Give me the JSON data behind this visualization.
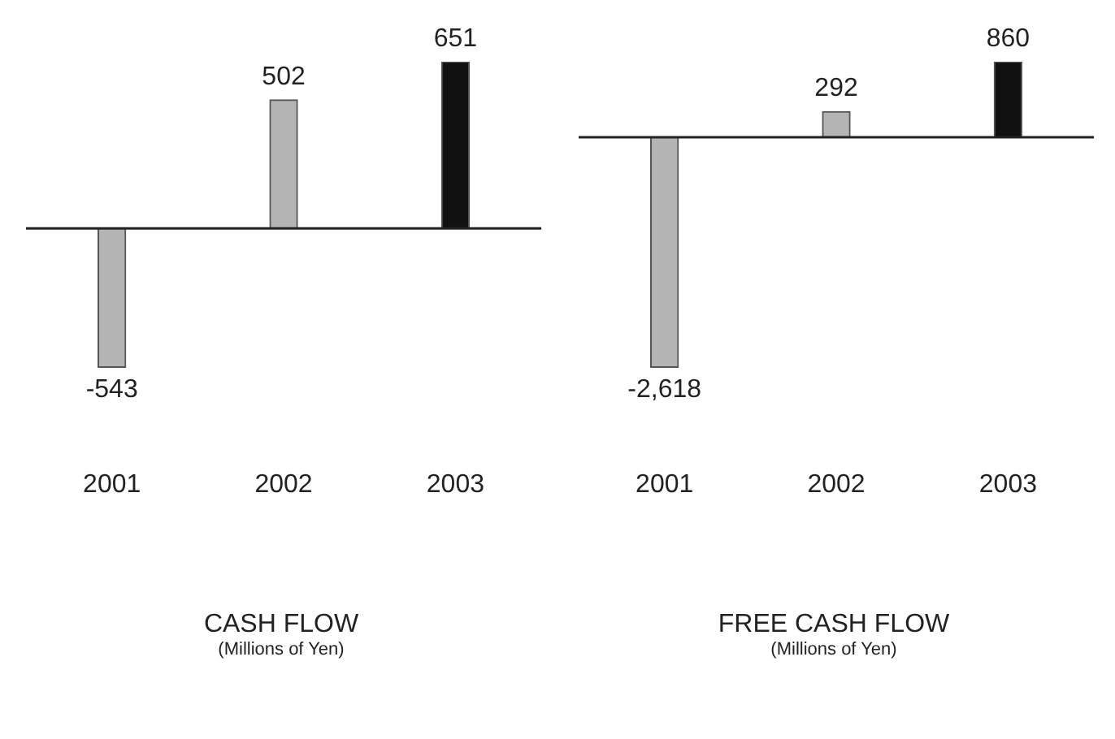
{
  "chart_data": [
    {
      "type": "bar",
      "title": "CASH FLOW",
      "subtitle": "(Millions of Yen)",
      "categories": [
        "2001",
        "2002",
        "2003"
      ],
      "values": [
        -543,
        502,
        651
      ],
      "value_labels": [
        "-543",
        "502",
        "651"
      ],
      "colors": [
        "#b4b4b4",
        "#b4b4b4",
        "#111111"
      ],
      "ref_lines": [
        {
          "axis": "y",
          "value": 0,
          "color": "#222222"
        }
      ],
      "grid": false,
      "legend": false,
      "tick_labels": "x"
    },
    {
      "type": "bar",
      "title": "FREE CASH FLOW",
      "subtitle": "(Millions of Yen)",
      "categories": [
        "2001",
        "2002",
        "2003"
      ],
      "values": [
        -2618,
        292,
        860
      ],
      "value_labels": [
        "-2,618",
        "292",
        "860"
      ],
      "colors": [
        "#b4b4b4",
        "#b4b4b4",
        "#111111"
      ],
      "ref_lines": [
        {
          "axis": "y",
          "value": 0,
          "color": "#222222"
        }
      ],
      "grid": false,
      "legend": false,
      "tick_labels": "x"
    }
  ]
}
